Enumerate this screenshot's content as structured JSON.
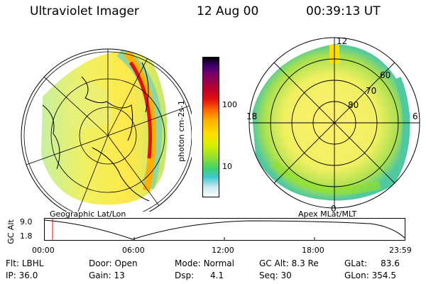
{
  "header": {
    "instrument": "Ultraviolet Imager",
    "date": "12 Aug 00",
    "time": "00:39:13 UT"
  },
  "left_panel": {
    "label": "Geographic Lat/Lon"
  },
  "right_panel": {
    "label": "Apex  MLat/MLT",
    "mlt_labels": [
      "12",
      "18",
      "6",
      "0"
    ],
    "mlat_labels": [
      "60",
      "70",
      "80"
    ]
  },
  "colorbar": {
    "label": "photon cm-2s-1",
    "ticks": [
      "100",
      "10"
    ],
    "colors": [
      "#000000",
      "#400070",
      "#7a006a",
      "#b80030",
      "#e41010",
      "#ff6a00",
      "#ffb000",
      "#ffe000",
      "#d8f000",
      "#90e030",
      "#40d070",
      "#40c8d0",
      "#c8e8f0",
      "#ffffff"
    ]
  },
  "altitude_plot": {
    "ylabel": "GC Alt",
    "ymax_label": "9.0",
    "ymin_label": "1.8",
    "xticks": [
      "00:00",
      "06:00",
      "12:00",
      "18:00",
      "23:59"
    ],
    "marker_color": "#ff0000"
  },
  "status": {
    "filter_label": "Flt:",
    "filter_value": "LBHL",
    "ip_label": "IP:",
    "ip_value": "36.0",
    "door_label": "Door:",
    "door_value": "Open",
    "gain_label": "Gain:",
    "gain_value": "13",
    "mode_label": "Mode:",
    "mode_value": "Normal",
    "dsp_label": "Dsp:",
    "dsp_value": "4.1",
    "gcalt_label": "GC Alt:",
    "gcalt_value": "8.3 Re",
    "seq_label": "Seq:",
    "seq_value": "30",
    "glat_label": "GLat:",
    "glat_value": "83.6",
    "glon_label": "GLon:",
    "glon_value": "354.5"
  }
}
